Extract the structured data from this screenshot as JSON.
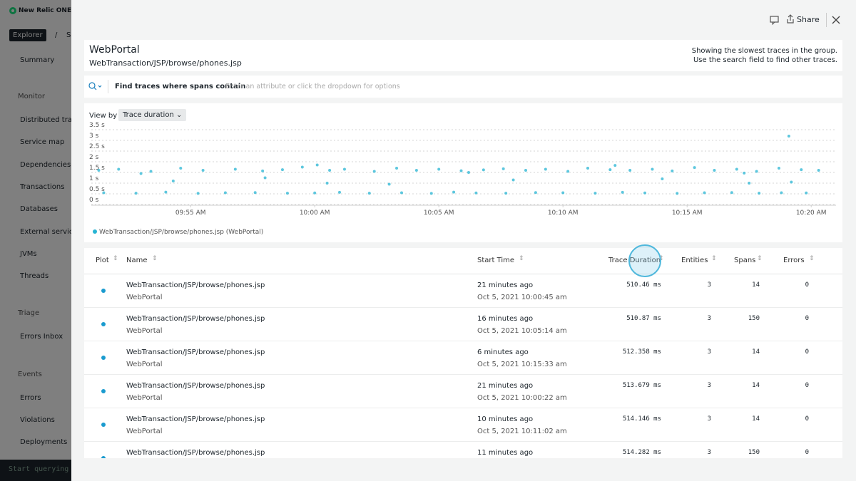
{
  "sidebar": {
    "brand": "New Relic ONE™",
    "explorer": "Explorer",
    "crumb_sep": "/",
    "crumb": "S",
    "summary": "Summary",
    "sections": [
      {
        "title": "Monitor",
        "items": [
          "Distributed tracing",
          "Service map",
          "Dependencies",
          "Transactions",
          "Databases",
          "External services",
          "JVMs",
          "Threads"
        ]
      },
      {
        "title": "Triage",
        "items": [
          "Errors Inbox"
        ]
      },
      {
        "title": "Events",
        "items": [
          "Errors",
          "Violations",
          "Deployments"
        ]
      }
    ],
    "query": "Start querying"
  },
  "header": {
    "share": "Share"
  },
  "entity": {
    "title": "WebPortal",
    "subtitle": "WebTransaction/JSP/browse/phones.jsp",
    "note": [
      "Showing the slowest traces in the group.",
      "Use the search field to find other traces."
    ]
  },
  "search": {
    "label": "Find traces where spans contain",
    "placeholder": "Enter an attribute or click the dropdown for options"
  },
  "view_by": {
    "label": "View by",
    "option": "Trace duration"
  },
  "chart_data": {
    "type": "scatter",
    "series": [
      {
        "name": "WebTransaction/JSP/browse/phones.jsp (WebPortal)",
        "color": "#27b4d3",
        "x": [
          591.3,
          592.1,
          593.4,
          594.6,
          595.5,
          596.8,
          597.9,
          598.7,
          599.5,
          600.6,
          601.2,
          602.4,
          603.3,
          604.1,
          605.0,
          605.9,
          606.8,
          607.6,
          608.5,
          609.3,
          610.2,
          611.0,
          611.9,
          612.7,
          613.6,
          614.4,
          615.3,
          616.1,
          617.0,
          617.8,
          618.7,
          619.6,
          620.3,
          593.0,
          600.1,
          606.2,
          612.1,
          617.3,
          591.5,
          592.8,
          594.0,
          595.3,
          596.4,
          597.6,
          598.9,
          600.0,
          601.0,
          602.2,
          603.5,
          604.7,
          605.6,
          606.5,
          607.7,
          608.9,
          610.0,
          611.3,
          612.4,
          613.3,
          614.6,
          615.7,
          616.8,
          617.9,
          618.8,
          619.8,
          594.3,
          600.5,
          603.0,
          608.0,
          614.0,
          617.5,
          619.2,
          598.0,
          619.1
        ],
        "values": [
          1.6,
          1.65,
          1.55,
          1.7,
          1.6,
          1.65,
          1.57,
          1.63,
          1.75,
          1.6,
          1.65,
          1.55,
          1.7,
          1.6,
          1.65,
          1.58,
          1.62,
          1.67,
          1.6,
          1.65,
          1.55,
          1.7,
          1.63,
          1.6,
          1.65,
          1.57,
          1.73,
          1.6,
          1.65,
          1.55,
          1.7,
          1.63,
          1.6,
          1.45,
          1.85,
          1.5,
          1.83,
          1.47,
          0.55,
          0.53,
          0.58,
          0.52,
          0.55,
          0.56,
          0.53,
          0.54,
          0.57,
          0.53,
          0.55,
          0.52,
          0.58,
          0.54,
          0.53,
          0.56,
          0.55,
          0.53,
          0.57,
          0.54,
          0.52,
          0.55,
          0.56,
          0.53,
          0.55,
          0.54,
          1.1,
          1.0,
          0.95,
          1.15,
          1.2,
          1.0,
          1.05,
          1.25,
          3.2
        ]
      }
    ],
    "xlim": [
      591,
      621
    ],
    "xticks": [
      {
        "value": 595,
        "label": "09:55 AM"
      },
      {
        "value": 600,
        "label": "10:00 AM"
      },
      {
        "value": 605,
        "label": "10:05 AM"
      },
      {
        "value": 610,
        "label": "10:10 AM"
      },
      {
        "value": 615,
        "label": "10:15 AM"
      },
      {
        "value": 620,
        "label": "10:20 AM"
      }
    ],
    "ylim": [
      0,
      3.5
    ],
    "yticks": [
      {
        "value": 0,
        "label": "0 s"
      },
      {
        "value": 0.5,
        "label": "0.5 s"
      },
      {
        "value": 1,
        "label": "1 s"
      },
      {
        "value": 1.5,
        "label": "1.5 s"
      },
      {
        "value": 2,
        "label": "2 s"
      },
      {
        "value": 2.5,
        "label": "2.5 s"
      },
      {
        "value": 3,
        "label": "3 s"
      },
      {
        "value": 3.5,
        "label": "3.5 s"
      }
    ],
    "grid": true
  },
  "table": {
    "columns": [
      "Plot",
      "Name",
      "Start Time",
      "Trace Duration",
      "Entities",
      "Spans",
      "Errors"
    ],
    "rows": [
      {
        "name": "WebTransaction/JSP/browse/phones.jsp",
        "entity": "WebPortal",
        "relative": "21 minutes ago",
        "timestamp": "Oct 5, 2021 10:00:45 am",
        "duration": "510.46 ms",
        "entities": 3,
        "spans": 14,
        "errors": 0
      },
      {
        "name": "WebTransaction/JSP/browse/phones.jsp",
        "entity": "WebPortal",
        "relative": "16 minutes ago",
        "timestamp": "Oct 5, 2021 10:05:14 am",
        "duration": "510.87 ms",
        "entities": 3,
        "spans": 150,
        "errors": 0
      },
      {
        "name": "WebTransaction/JSP/browse/phones.jsp",
        "entity": "WebPortal",
        "relative": "6 minutes ago",
        "timestamp": "Oct 5, 2021 10:15:33 am",
        "duration": "512.358 ms",
        "entities": 3,
        "spans": 14,
        "errors": 0
      },
      {
        "name": "WebTransaction/JSP/browse/phones.jsp",
        "entity": "WebPortal",
        "relative": "21 minutes ago",
        "timestamp": "Oct 5, 2021 10:00:22 am",
        "duration": "513.679 ms",
        "entities": 3,
        "spans": 14,
        "errors": 0
      },
      {
        "name": "WebTransaction/JSP/browse/phones.jsp",
        "entity": "WebPortal",
        "relative": "10 minutes ago",
        "timestamp": "Oct 5, 2021 10:11:02 am",
        "duration": "514.146 ms",
        "entities": 3,
        "spans": 14,
        "errors": 0
      },
      {
        "name": "WebTransaction/JSP/browse/phones.jsp",
        "relative": "11 minutes ago",
        "duration": "514.282 ms",
        "entities": 3,
        "spans": 150,
        "errors": 0
      }
    ]
  }
}
